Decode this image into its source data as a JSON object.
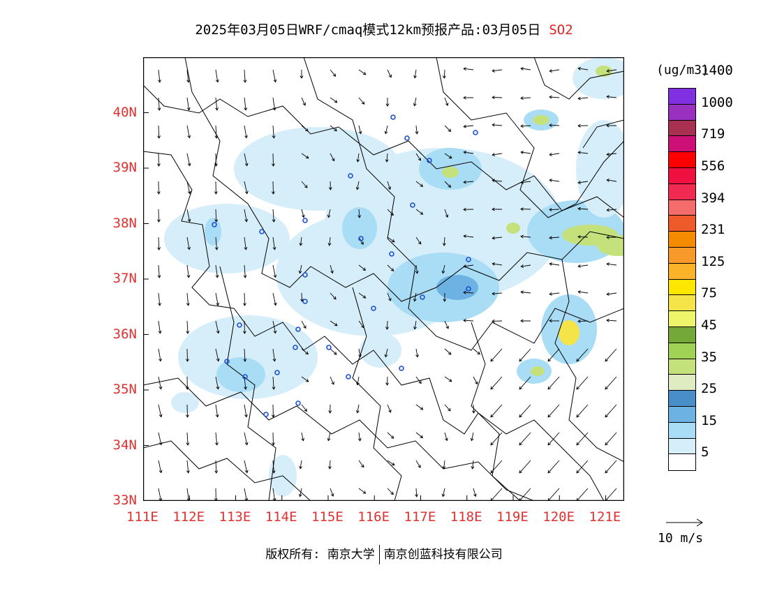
{
  "title": {
    "main": "2025年03月05日WRF/cmaq模式12km预报产品:03月05日",
    "species": "SO2"
  },
  "units": "(ug/m3)",
  "colorbar": {
    "levels": [
      "5",
      "15",
      "25",
      "35",
      "45",
      "75",
      "125",
      "231",
      "394",
      "556",
      "719",
      "1000",
      "1400"
    ],
    "colors": [
      "#ffffff",
      "#d6eef9",
      "#a9dcf5",
      "#6cb3e3",
      "#4a8ec8",
      "#dfecc2",
      "#c5e17b",
      "#9fd255",
      "#74a93a",
      "#eef56a",
      "#f5e34a",
      "#fde600",
      "#fcb32a",
      "#f79a29",
      "#f58b00",
      "#ee5a2a",
      "#f56c6c",
      "#f02a50",
      "#f01040",
      "#ff0000",
      "#cc1078",
      "#a83050",
      "#9a30c0",
      "#8030e0"
    ]
  },
  "vector_scale": "10  m/s",
  "axes": {
    "y_ticks": [
      "40N",
      "39N",
      "38N",
      "37N",
      "36N",
      "35N",
      "34N",
      "33N"
    ],
    "x_ticks": [
      "111E",
      "112E",
      "113E",
      "114E",
      "115E",
      "116E",
      "117E",
      "118E",
      "119E",
      "120E",
      "121E"
    ]
  },
  "footer": {
    "left": "版权所有: 南京大学",
    "right": "南京创蓝科技有限公司"
  },
  "map": {
    "lon_range": [
      111,
      121.4
    ],
    "lat_range": [
      33,
      41
    ],
    "plume_colors": {
      "light": "#d6eef9",
      "mid": "#a9dcf5",
      "blue": "#6cb3e3",
      "deep": "#4a8ec8",
      "green": "#c5e17b",
      "yellow": "#f5e34a"
    },
    "station_color": "#1a4fd0"
  }
}
